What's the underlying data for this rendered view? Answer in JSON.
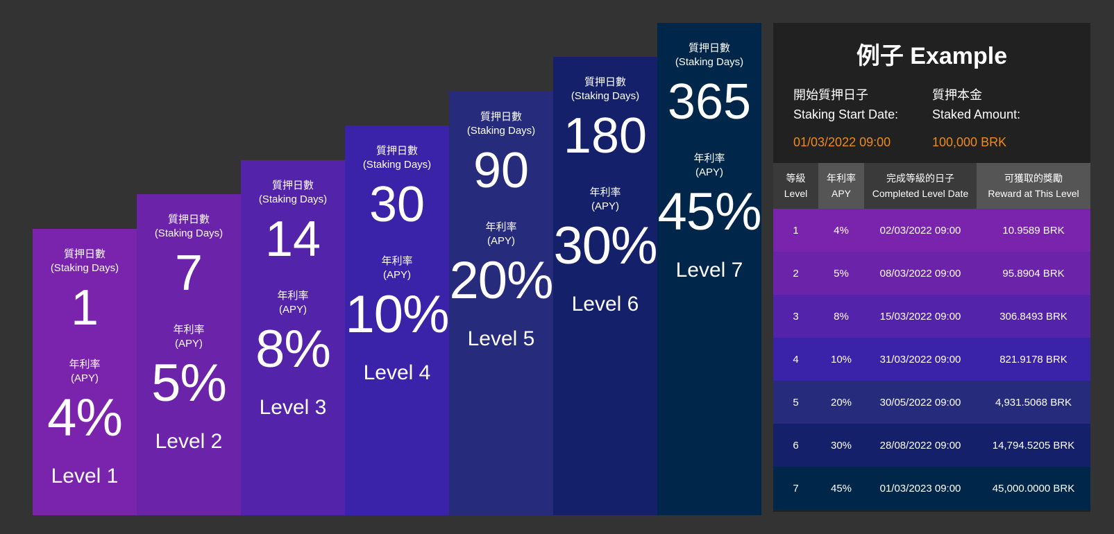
{
  "levels": [
    {
      "days_label": "質押日數",
      "days_label_en": "(Staking Days)",
      "days": "1",
      "apy_label": "年利率",
      "apy_label_en": "(APY)",
      "apy": "4%",
      "name": "Level 1",
      "color": "#7a24ae"
    },
    {
      "days_label": "質押日數",
      "days_label_en": "(Staking Days)",
      "days": "7",
      "apy_label": "年利率",
      "apy_label_en": "(APY)",
      "apy": "5%",
      "name": "Level 2",
      "color": "#6a23a9"
    },
    {
      "days_label": "質押日數",
      "days_label_en": "(Staking Days)",
      "days": "14",
      "apy_label": "年利率",
      "apy_label_en": "(APY)",
      "apy": "8%",
      "name": "Level 3",
      "color": "#5324aa"
    },
    {
      "days_label": "質押日數",
      "days_label_en": "(Staking Days)",
      "days": "30",
      "apy_label": "年利率",
      "apy_label_en": "(APY)",
      "apy": "10%",
      "name": "Level 4",
      "color": "#3b23a9"
    },
    {
      "days_label": "質押日數",
      "days_label_en": "(Staking Days)",
      "days": "90",
      "apy_label": "年利率",
      "apy_label_en": "(APY)",
      "apy": "20%",
      "name": "Level 5",
      "color": "#272b7b"
    },
    {
      "days_label": "質押日數",
      "days_label_en": "(Staking Days)",
      "days": "180",
      "apy_label": "年利率",
      "apy_label_en": "(APY)",
      "apy": "30%",
      "name": "Level 6",
      "color": "#14206a"
    },
    {
      "days_label": "質押日數",
      "days_label_en": "(Staking Days)",
      "days": "365",
      "apy_label": "年利率",
      "apy_label_en": "(APY)",
      "apy": "45%",
      "name": "Level 7",
      "color": "#00264a"
    }
  ],
  "example": {
    "title": "例子 Example",
    "start_label": "開始質押日子",
    "start_label_en": "Staking Start Date:",
    "start_value": "01/03/2022 09:00",
    "amount_label": "質押本金",
    "amount_label_en": "Staked Amount:",
    "amount_value": "100,000 BRK",
    "accent_color": "#f08a1c",
    "headers": [
      {
        "zh": "等級",
        "en": "Level"
      },
      {
        "zh": "年利率",
        "en": "APY"
      },
      {
        "zh": "完成等級的日子",
        "en": "Completed Level Date"
      },
      {
        "zh": "可獲取的獎勵",
        "en": "Reward at This Level"
      }
    ],
    "rows": [
      {
        "level": "1",
        "apy": "4%",
        "date": "02/03/2022 09:00",
        "reward": "10.9589 BRK",
        "color": "#7a24ae"
      },
      {
        "level": "2",
        "apy": "5%",
        "date": "08/03/2022 09:00",
        "reward": "95.8904 BRK",
        "color": "#6a23a9"
      },
      {
        "level": "3",
        "apy": "8%",
        "date": "15/03/2022 09:00",
        "reward": "306.8493 BRK",
        "color": "#5324aa"
      },
      {
        "level": "4",
        "apy": "10%",
        "date": "31/03/2022 09:00",
        "reward": "821.9178 BRK",
        "color": "#3b23a9"
      },
      {
        "level": "5",
        "apy": "20%",
        "date": "30/05/2022 09:00",
        "reward": "4,931.5068 BRK",
        "color": "#272b7b"
      },
      {
        "level": "6",
        "apy": "30%",
        "date": "28/08/2022 09:00",
        "reward": "14,794.5205 BRK",
        "color": "#14206a"
      },
      {
        "level": "7",
        "apy": "45%",
        "date": "01/03/2023 09:00",
        "reward": "45,000.0000 BRK",
        "color": "#00264a"
      }
    ]
  }
}
